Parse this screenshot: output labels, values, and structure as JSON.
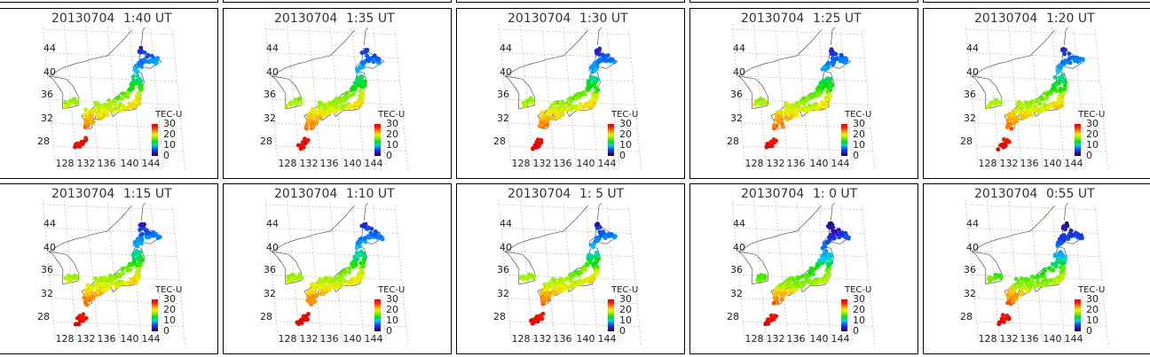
{
  "panels": [
    {
      "date": "20130704",
      "time": "1:40 UT"
    },
    {
      "date": "20130704",
      "time": "1:35 UT"
    },
    {
      "date": "20130704",
      "time": "1:30 UT"
    },
    {
      "date": "20130704",
      "time": "1:25 UT"
    },
    {
      "date": "20130704",
      "time": "1:20 UT"
    },
    {
      "date": "20130704",
      "time": "1:15 UT"
    },
    {
      "date": "20130704",
      "time": "1:10 UT"
    },
    {
      "date": "20130704",
      "time": "1: 5 UT"
    },
    {
      "date": "20130704",
      "time": "1: 0 UT"
    },
    {
      "date": "20130704",
      "time": "0:55 UT"
    }
  ],
  "chart_data": {
    "type": "scatter",
    "description_kind": "TEC map over Japan",
    "lat_ticks": [
      "44",
      "40",
      "36",
      "32",
      "28"
    ],
    "lon_ticks": [
      "128",
      "132",
      "136",
      "140",
      "144"
    ],
    "colorbar": {
      "label": "TEC-U",
      "ticks": [
        "30",
        "20",
        "10",
        "0"
      ],
      "range": [
        0,
        30
      ],
      "colors": [
        "#200030",
        "#3010c0",
        "#0060ff",
        "#00d0ff",
        "#00e000",
        "#80f000",
        "#f0f000",
        "#ff9000",
        "#ff2000",
        "#e00000"
      ]
    },
    "grid": true
  }
}
